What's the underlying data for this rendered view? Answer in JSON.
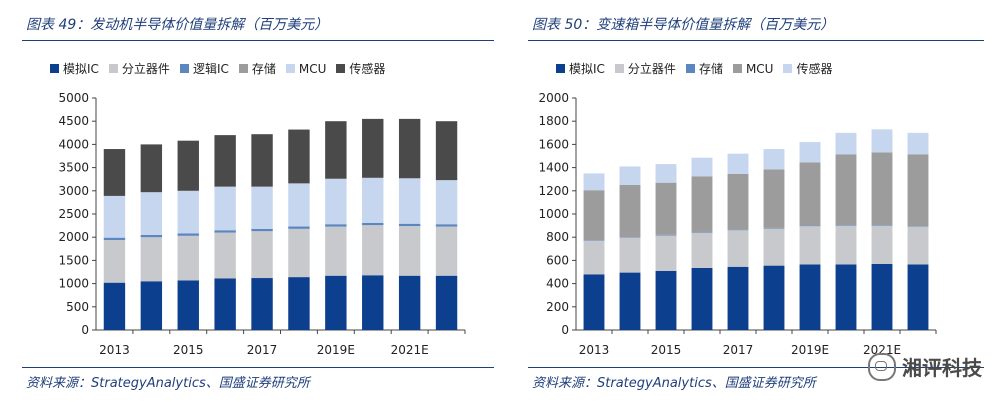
{
  "left": {
    "title": "图表 49：发动机半导体价值量拆解（百万美元）",
    "source": "资料来源：StrategyAnalytics、国盛证券研究所",
    "chart_data": {
      "type": "bar",
      "stacked": true,
      "categories": [
        "2013",
        "2014",
        "2015",
        "2016",
        "2017",
        "2018",
        "2019E",
        "2020E",
        "2021E",
        "2022E"
      ],
      "tick_labels": [
        "2013",
        "",
        "2015",
        "",
        "2017",
        "",
        "2019E",
        "",
        "2021E",
        ""
      ],
      "ylim": [
        0,
        5000
      ],
      "yticks": [
        0,
        500,
        1000,
        1500,
        2000,
        2500,
        3000,
        3500,
        4000,
        4500,
        5000
      ],
      "legend_position": "top",
      "series": [
        {
          "name": "模拟IC",
          "color": "#0d3f8f",
          "values": [
            1020,
            1050,
            1070,
            1110,
            1120,
            1140,
            1170,
            1180,
            1170,
            1170
          ]
        },
        {
          "name": "分立器件",
          "color": "#c7c9cc",
          "values": [
            920,
            950,
            960,
            990,
            1010,
            1040,
            1060,
            1080,
            1070,
            1060
          ]
        },
        {
          "name": "逻辑IC",
          "color": "#5b86c0",
          "values": [
            50,
            50,
            50,
            50,
            50,
            50,
            50,
            50,
            50,
            50
          ]
        },
        {
          "name": "存储",
          "color": "#9c9c9c",
          "values": [
            0,
            0,
            0,
            0,
            0,
            0,
            0,
            0,
            0,
            0
          ]
        },
        {
          "name": "MCU",
          "color": "#c5d6ee",
          "values": [
            900,
            920,
            920,
            940,
            910,
            930,
            980,
            970,
            980,
            950
          ]
        },
        {
          "name": "传感器",
          "color": "#4a4a4a",
          "values": [
            1010,
            1030,
            1080,
            1110,
            1130,
            1160,
            1240,
            1270,
            1280,
            1270
          ]
        }
      ]
    }
  },
  "right": {
    "title": "图表 50：变速箱半导体价值量拆解（百万美元）",
    "source": "资料来源：StrategyAnalytics、国盛证券研究所",
    "chart_data": {
      "type": "bar",
      "stacked": true,
      "categories": [
        "2013",
        "2014",
        "2015",
        "2016",
        "2017",
        "2018",
        "2019E",
        "2020E",
        "2021E",
        "2022E"
      ],
      "tick_labels": [
        "2013",
        "",
        "2015",
        "",
        "2017",
        "",
        "2019E",
        "",
        "2021E",
        ""
      ],
      "ylim": [
        0,
        2000
      ],
      "yticks": [
        0,
        200,
        400,
        600,
        800,
        1000,
        1200,
        1400,
        1600,
        1800,
        2000
      ],
      "legend_position": "top",
      "series": [
        {
          "name": "模拟IC",
          "color": "#0d3f8f",
          "values": [
            480,
            495,
            510,
            535,
            545,
            555,
            565,
            565,
            570,
            565
          ]
        },
        {
          "name": "分立器件",
          "color": "#c7c9cc",
          "values": [
            290,
            300,
            305,
            305,
            315,
            320,
            330,
            335,
            330,
            325
          ]
        },
        {
          "name": "存储",
          "color": "#5b86c0",
          "values": [
            5,
            5,
            5,
            5,
            5,
            5,
            5,
            5,
            5,
            5
          ]
        },
        {
          "name": "MCU",
          "color": "#9c9c9c",
          "values": [
            430,
            450,
            450,
            480,
            480,
            505,
            545,
            610,
            625,
            620
          ]
        },
        {
          "name": "传感器",
          "color": "#c5d6ee",
          "values": [
            145,
            160,
            160,
            160,
            175,
            175,
            175,
            185,
            200,
            185
          ]
        }
      ]
    }
  },
  "watermark": {
    "text": "湘评科技",
    "icon": "wechat-icon"
  }
}
